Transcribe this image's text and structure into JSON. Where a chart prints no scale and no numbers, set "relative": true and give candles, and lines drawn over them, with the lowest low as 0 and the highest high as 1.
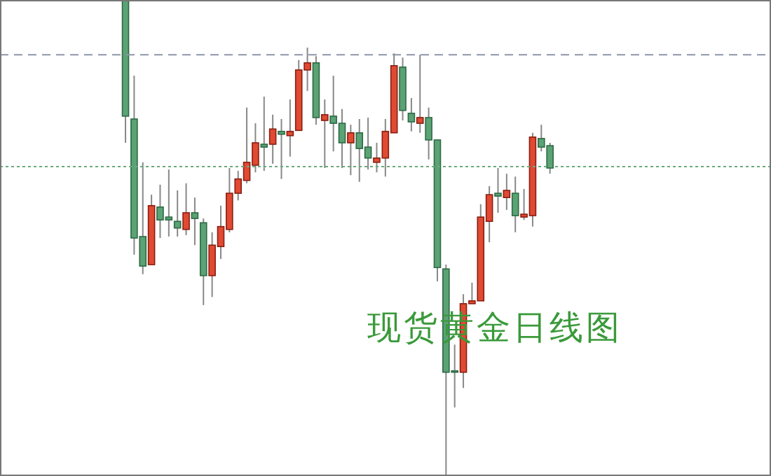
{
  "chart_data": {
    "type": "candlestick",
    "relative": true,
    "categories": [
      null,
      null,
      null,
      null,
      null,
      null,
      null,
      null,
      null,
      null,
      null,
      null,
      null,
      null,
      null,
      null,
      null,
      null,
      null,
      null,
      null,
      null,
      null,
      null,
      null,
      null,
      null,
      null,
      null,
      null,
      null,
      null,
      null,
      null,
      null,
      null,
      null,
      null,
      null,
      null,
      null,
      null,
      null,
      null,
      null,
      null,
      null,
      null,
      null,
      null,
      null,
      null,
      null,
      null,
      null,
      null,
      null,
      null,
      null,
      null,
      null,
      null,
      null,
      null,
      null,
      null,
      null,
      null,
      null,
      null,
      null,
      null,
      null,
      null,
      null,
      null,
      null,
      null,
      null,
      null,
      null,
      null,
      null,
      null,
      null,
      null,
      null,
      null,
      null
    ],
    "ohlc": [
      null,
      null,
      null,
      null,
      null,
      null,
      null,
      null,
      null,
      null,
      null,
      null,
      null,
      null,
      [
        1,
        1,
        0.7,
        0.756
      ],
      [
        0.75,
        0.841,
        0.465,
        0.5
      ],
      [
        0.503,
        0.659,
        0.424,
        0.441
      ],
      [
        0.444,
        0.591,
        0.444,
        0.568
      ],
      [
        0.565,
        0.612,
        0.5,
        0.538
      ],
      [
        0.544,
        0.644,
        0.503,
        0.538
      ],
      [
        0.535,
        0.6,
        0.503,
        0.521
      ],
      [
        0.518,
        0.615,
        0.506,
        0.553
      ],
      [
        0.553,
        0.585,
        0.485,
        0.541
      ],
      [
        0.532,
        0.541,
        0.359,
        0.421
      ],
      [
        0.421,
        0.512,
        0.376,
        0.485
      ],
      [
        0.482,
        0.568,
        0.456,
        0.524
      ],
      [
        0.518,
        0.647,
        0.512,
        0.594
      ],
      [
        0.594,
        0.641,
        0.579,
        0.624
      ],
      [
        0.621,
        0.774,
        0.615,
        0.659
      ],
      [
        0.653,
        0.741,
        0.638,
        0.7
      ],
      [
        0.697,
        0.797,
        0.641,
        0.691
      ],
      [
        0.697,
        0.759,
        0.656,
        0.729
      ],
      [
        0.724,
        0.75,
        0.624,
        0.718
      ],
      [
        0.715,
        0.791,
        0.671,
        0.724
      ],
      [
        0.726,
        0.874,
        0.726,
        0.853
      ],
      [
        0.853,
        0.9,
        0.809,
        0.868
      ],
      [
        0.868,
        0.882,
        0.738,
        0.753
      ],
      [
        0.747,
        0.791,
        0.647,
        0.759
      ],
      [
        0.756,
        0.841,
        0.682,
        0.741
      ],
      [
        0.741,
        0.771,
        0.647,
        0.7
      ],
      [
        0.7,
        0.738,
        0.632,
        0.721
      ],
      [
        0.721,
        0.75,
        0.618,
        0.688
      ],
      [
        0.691,
        0.753,
        0.644,
        0.668
      ],
      [
        0.659,
        0.7,
        0.638,
        0.668
      ],
      [
        0.668,
        0.75,
        0.629,
        0.724
      ],
      [
        0.721,
        0.888,
        0.721,
        0.862
      ],
      [
        0.859,
        0.879,
        0.747,
        0.768
      ],
      [
        0.762,
        0.794,
        0.724,
        0.744
      ],
      [
        0.741,
        0.885,
        0.721,
        0.753
      ],
      [
        0.753,
        0.774,
        0.665,
        0.706
      ],
      [
        0.706,
        0.706,
        0.409,
        0.438
      ],
      [
        0.435,
        0.444,
        0,
        0.218
      ],
      [
        0.221,
        0.276,
        0.144,
        0.218
      ],
      [
        0.218,
        0.382,
        0.185,
        0.362
      ],
      [
        0.362,
        0.406,
        0.362,
        0.368
      ],
      [
        0.368,
        0.571,
        0.368,
        0.544
      ],
      [
        0.535,
        0.609,
        0.491,
        0.591
      ],
      [
        0.594,
        0.647,
        0.553,
        0.588
      ],
      [
        0.585,
        0.635,
        0.559,
        0.6
      ],
      [
        0.594,
        0.629,
        0.512,
        0.547
      ],
      [
        0.544,
        0.603,
        0.538,
        0.55
      ],
      [
        0.547,
        0.721,
        0.524,
        0.712
      ],
      [
        0.709,
        0.738,
        0.682,
        0.691
      ],
      [
        0.694,
        0.7,
        0.635,
        0.647
      ],
      null,
      null,
      null,
      null,
      null,
      null,
      null,
      null,
      null,
      null,
      null,
      null,
      null,
      null,
      null,
      null,
      null,
      null,
      null,
      null,
      null,
      null,
      null,
      null,
      null
    ],
    "colors": [
      null,
      null,
      null,
      null,
      null,
      null,
      null,
      null,
      null,
      null,
      null,
      null,
      null,
      null,
      "#5ba274",
      "#5ba274",
      "#5ba274",
      "#e04a33",
      "#5ba274",
      "#5ba274",
      "#5ba274",
      "#e04a33",
      "#5ba274",
      "#5ba274",
      "#e04a33",
      "#e04a33",
      "#e04a33",
      "#e04a33",
      "#e04a33",
      "#e04a33",
      "#5ba274",
      "#e04a33",
      "#5ba274",
      "#e04a33",
      "#e04a33",
      "#e04a33",
      "#5ba274",
      "#e04a33",
      "#5ba274",
      "#5ba274",
      "#e04a33",
      "#5ba274",
      "#5ba274",
      "#e04a33",
      "#e04a33",
      "#e04a33",
      "#5ba274",
      "#5ba274",
      "#e04a33",
      "#5ba274",
      "#5ba274",
      "#5ba274",
      "#5ba274",
      "#e04a33",
      "#e04a33",
      "#e04a33",
      "#e04a33",
      "#5ba274",
      "#e04a33",
      "#5ba274",
      "#e04a33",
      "#e04a33",
      "#5ba274",
      "#5ba274",
      null,
      null,
      null,
      null,
      null,
      null,
      null,
      null,
      null,
      null,
      null,
      null,
      null,
      null,
      null,
      null,
      null,
      null,
      null,
      null,
      null,
      null,
      null,
      null,
      null
    ],
    "ref_lines": [
      {
        "axis": "y",
        "value": 0.885,
        "color": "#8d96a8",
        "line_style": "dashed"
      },
      {
        "axis": "y",
        "value": 0.65,
        "color": "#6aaa80",
        "line_style": "dotted"
      }
    ],
    "annotations": [
      "现货黄金日线图"
    ]
  }
}
